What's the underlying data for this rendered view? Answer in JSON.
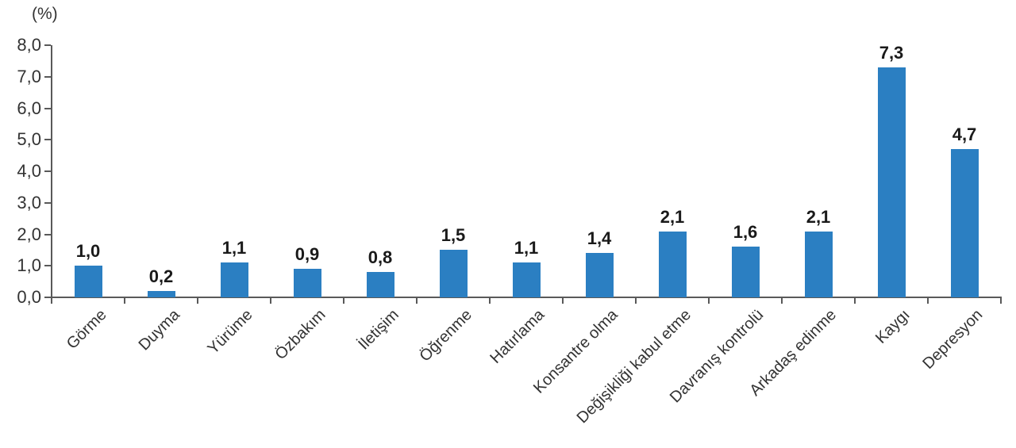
{
  "chart_data": {
    "type": "bar",
    "title": "",
    "ylabel": "(%)",
    "xlabel": "",
    "categories": [
      "Görme",
      "Duyma",
      "Yürüme",
      "Özbakım",
      "İletişim",
      "Öğrenme",
      "Hatırlama",
      "Konsantre olma",
      "Değişikliği kabul etme",
      "Davranış kontrolü",
      "Arkadaş edinme",
      "Kaygı",
      "Depresyon"
    ],
    "values": [
      1.0,
      0.2,
      1.1,
      0.9,
      0.8,
      1.5,
      1.1,
      1.4,
      2.1,
      1.6,
      2.1,
      7.3,
      4.7
    ],
    "value_labels": [
      "1,0",
      "0,2",
      "1,1",
      "0,9",
      "0,8",
      "1,5",
      "1,1",
      "1,4",
      "2,1",
      "1,6",
      "2,1",
      "7,3",
      "4,7"
    ],
    "y_tick_labels": [
      "8,0",
      "7,0",
      "6,0",
      "5,0",
      "4,0",
      "3,0",
      "2,0",
      "1,0",
      "0,0"
    ],
    "ylim": [
      0,
      8
    ],
    "y_step": 1.0,
    "grid": false,
    "legend_position": "none",
    "bar_color": "#2b7fc2",
    "axis_color": "#595959",
    "tick_label_color": "#333333",
    "value_label_color": "#1a1a1a",
    "decimal_separator": ","
  }
}
